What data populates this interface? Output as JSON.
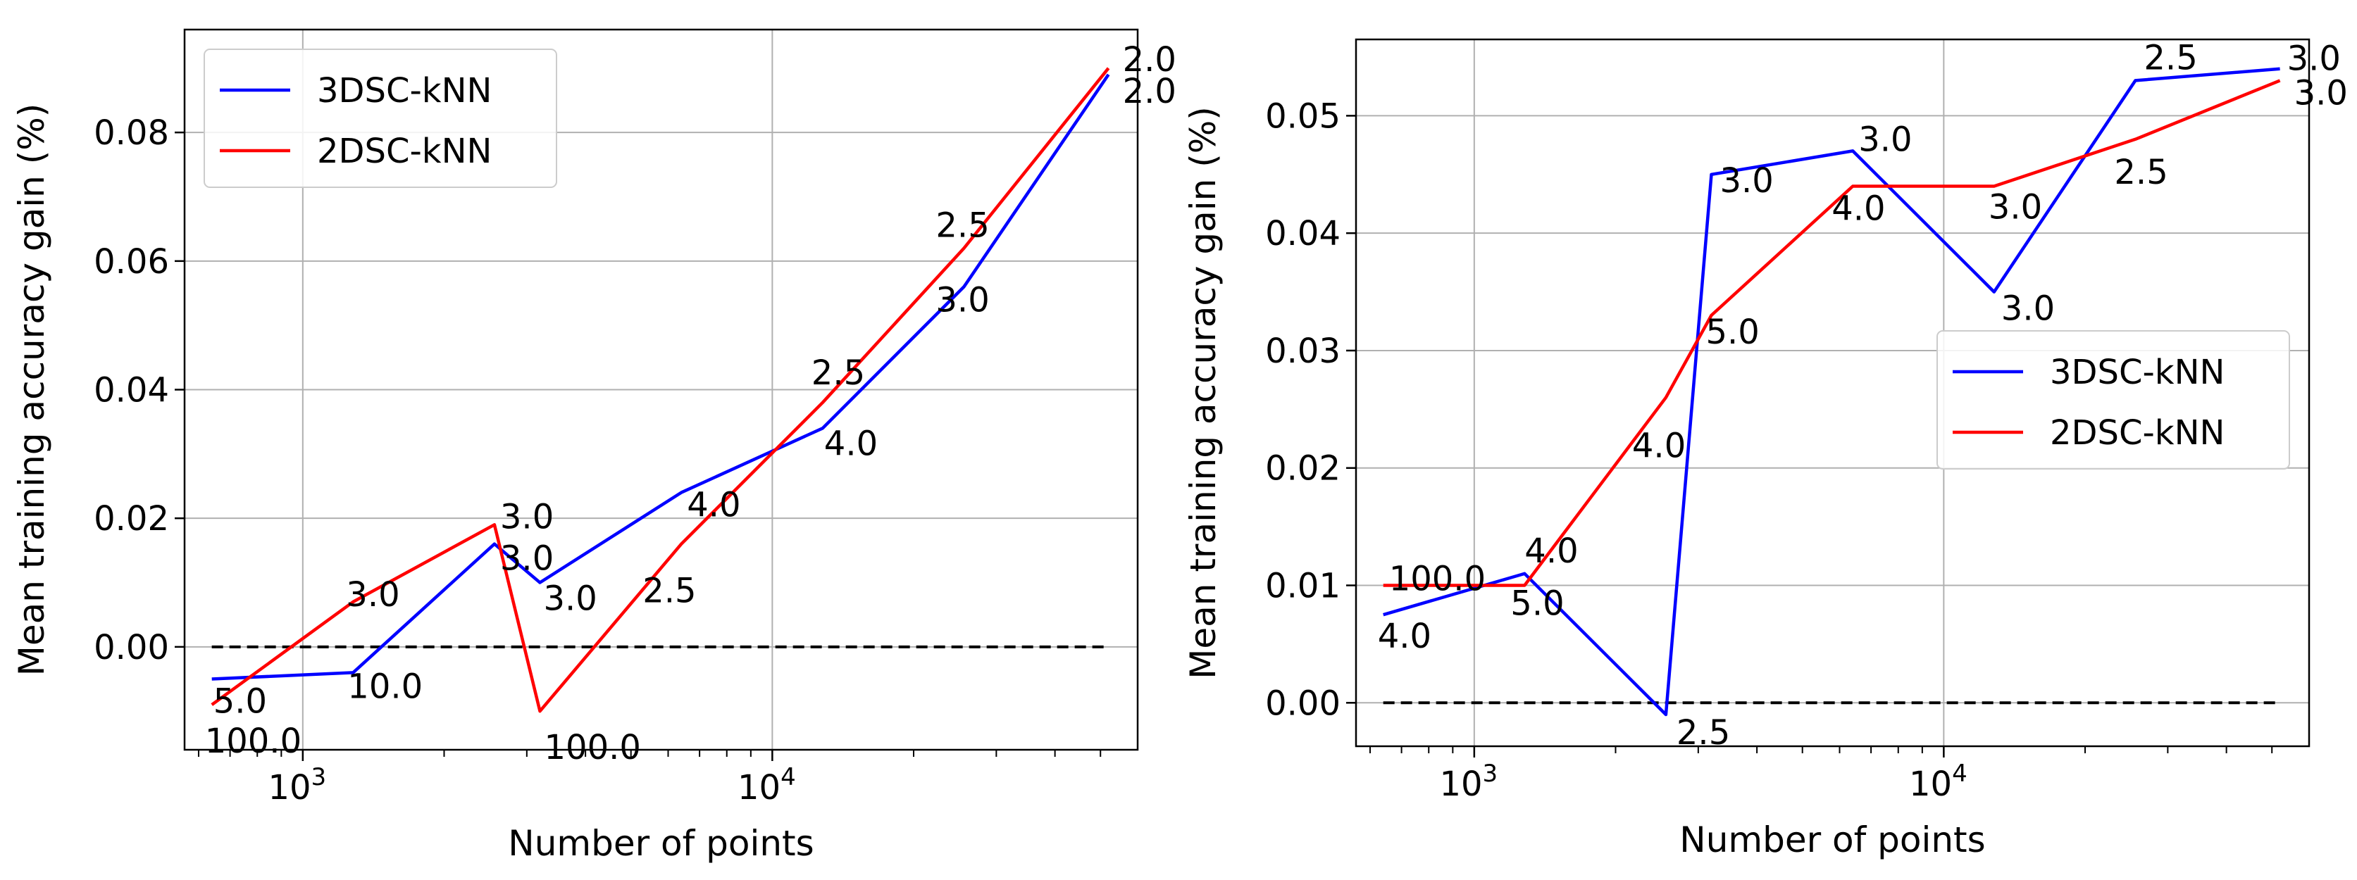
{
  "chart_data": [
    {
      "type": "line",
      "xscale": "log",
      "xlabel": "Number of points",
      "ylabel": "Mean training accuracy gain (%)",
      "xlim": [
        560,
        60000
      ],
      "ylim": [
        -0.016,
        0.096
      ],
      "xticks": [
        {
          "value": 1000,
          "base": "10",
          "exp": "3"
        },
        {
          "value": 10000,
          "base": "10",
          "exp": "4"
        }
      ],
      "yticks": [
        {
          "value": 0,
          "label": "0.00"
        },
        {
          "value": 0.02,
          "label": "0.02"
        },
        {
          "value": 0.04,
          "label": "0.04"
        },
        {
          "value": 0.06,
          "label": "0.06"
        },
        {
          "value": 0.08,
          "label": "0.08"
        }
      ],
      "grid": true,
      "legend_position": "upper-left",
      "baseline": {
        "y": 0,
        "x_from": 640,
        "x_to": 52000,
        "style": "dashed",
        "color": "#000000"
      },
      "series": [
        {
          "name": "3DSC-kNN",
          "color": "#0000ff",
          "x": [
            640,
            1280,
            2560,
            3200,
            6400,
            12800,
            25600,
            52000
          ],
          "y": [
            -0.005,
            -0.004,
            0.016,
            0.01,
            0.024,
            0.034,
            0.056,
            0.089
          ],
          "labels": [
            "5.0",
            "10.0",
            "3.0",
            "3.0",
            "4.0",
            "4.0",
            "3.0",
            "2.0"
          ]
        },
        {
          "name": "2DSC-kNN",
          "color": "#ff0000",
          "x": [
            640,
            1280,
            2560,
            3200,
            6400,
            12800,
            25600,
            52000
          ],
          "y": [
            -0.009,
            0.007,
            0.019,
            -0.01,
            0.016,
            0.038,
            0.062,
            0.09
          ],
          "labels": [
            "100.0",
            "3.0",
            "3.0",
            "100.0",
            "2.5",
            "2.5",
            "2.5",
            "2.0"
          ]
        }
      ]
    },
    {
      "type": "line",
      "xscale": "log",
      "xlabel": "Number of points",
      "ylabel": "Mean training accuracy gain (%)",
      "xlim": [
        560,
        60000
      ],
      "ylim": [
        -0.0037,
        0.0565
      ],
      "xticks": [
        {
          "value": 1000,
          "base": "10",
          "exp": "3"
        },
        {
          "value": 10000,
          "base": "10",
          "exp": "4"
        }
      ],
      "yticks": [
        {
          "value": 0,
          "label": "0.00"
        },
        {
          "value": 0.01,
          "label": "0.01"
        },
        {
          "value": 0.02,
          "label": "0.02"
        },
        {
          "value": 0.03,
          "label": "0.03"
        },
        {
          "value": 0.04,
          "label": "0.04"
        },
        {
          "value": 0.05,
          "label": "0.05"
        }
      ],
      "grid": true,
      "legend_position": "center-right",
      "baseline": {
        "y": 0,
        "x_from": 640,
        "x_to": 52000,
        "style": "dashed",
        "color": "#000000"
      },
      "series": [
        {
          "name": "3DSC-kNN",
          "color": "#0000ff",
          "x": [
            640,
            1280,
            2560,
            3200,
            6400,
            12800,
            25600,
            52000
          ],
          "y": [
            0.0075,
            0.011,
            -0.001,
            0.045,
            0.047,
            0.035,
            0.053,
            0.054
          ],
          "labels": [
            "4.0",
            "4.0",
            "2.5",
            "3.0",
            "3.0",
            "3.0",
            "2.5",
            "3.0"
          ]
        },
        {
          "name": "2DSC-kNN",
          "color": "#ff0000",
          "x": [
            640,
            1280,
            2560,
            3200,
            6400,
            12800,
            25600,
            52000
          ],
          "y": [
            0.01,
            0.01,
            0.026,
            0.033,
            0.044,
            0.044,
            0.048,
            0.053
          ],
          "labels": [
            "100.0",
            "5.0",
            "4.0",
            "5.0",
            "4.0",
            "3.0",
            "2.5",
            "3.0"
          ]
        }
      ]
    }
  ]
}
